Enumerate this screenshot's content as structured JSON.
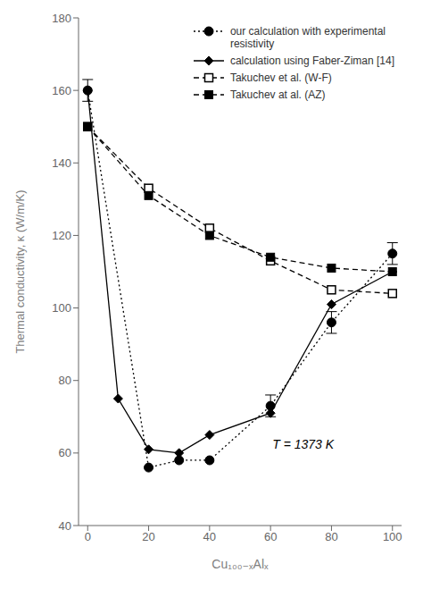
{
  "chart_data": {
    "type": "line",
    "xlabel": "Cu₁₀₀₋ₓAlₓ",
    "ylabel": "Thermal conductivity, κ (W/m/K)",
    "xlim": [
      -3,
      103
    ],
    "ylim": [
      40,
      180
    ],
    "xticks": [
      0,
      20,
      40,
      60,
      80,
      100
    ],
    "yticks": [
      40,
      60,
      80,
      100,
      120,
      140,
      160,
      180
    ],
    "annotation": "T = 1373 K",
    "grid": false,
    "legend": "upper right",
    "series": [
      {
        "name": "our calculation with experimental\nresistivity",
        "x": [
          0,
          20,
          30,
          40,
          60,
          80,
          100
        ],
        "values": [
          160,
          56,
          58,
          58,
          73,
          96,
          115
        ],
        "yerr": [
          3,
          0,
          0,
          0,
          3,
          3,
          3
        ],
        "color": "black",
        "marker": "circle",
        "line_style": "dotted"
      },
      {
        "name": "calculation using Faber-Ziman [14]",
        "x": [
          0,
          10,
          20,
          30,
          40,
          60,
          80,
          100
        ],
        "values": [
          160,
          75,
          61,
          60,
          65,
          71,
          101,
          110
        ],
        "color": "black",
        "marker": "diamond",
        "line_style": "solid"
      },
      {
        "name": "Takuchev et al. (W-F)",
        "x": [
          0,
          20,
          40,
          60,
          80,
          100
        ],
        "values": [
          150,
          133,
          122,
          113,
          105,
          104
        ],
        "color": "black",
        "marker": "open_square",
        "line_style": "dashed"
      },
      {
        "name": "Takuchev at al. (AZ)",
        "x": [
          0,
          20,
          40,
          60,
          80,
          100
        ],
        "values": [
          150,
          131,
          120,
          114,
          111,
          110
        ],
        "color": "black",
        "marker": "square",
        "line_style": "dashed"
      }
    ]
  }
}
